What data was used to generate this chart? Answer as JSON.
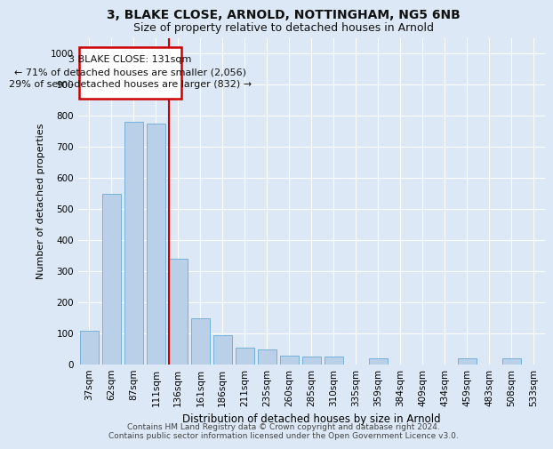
{
  "title1": "3, BLAKE CLOSE, ARNOLD, NOTTINGHAM, NG5 6NB",
  "title2": "Size of property relative to detached houses in Arnold",
  "xlabel": "Distribution of detached houses by size in Arnold",
  "ylabel": "Number of detached properties",
  "categories": [
    "37sqm",
    "62sqm",
    "87sqm",
    "111sqm",
    "136sqm",
    "161sqm",
    "186sqm",
    "211sqm",
    "235sqm",
    "260sqm",
    "285sqm",
    "310sqm",
    "335sqm",
    "359sqm",
    "384sqm",
    "409sqm",
    "434sqm",
    "459sqm",
    "483sqm",
    "508sqm",
    "533sqm"
  ],
  "values": [
    110,
    550,
    780,
    775,
    340,
    150,
    95,
    55,
    50,
    30,
    25,
    25,
    0,
    20,
    0,
    0,
    0,
    20,
    0,
    20,
    0
  ],
  "bar_color": "#bad0e8",
  "bar_edge_color": "#6aaad4",
  "bar_width": 0.85,
  "ylim": [
    0,
    1050
  ],
  "yticks": [
    0,
    100,
    200,
    300,
    400,
    500,
    600,
    700,
    800,
    900,
    1000
  ],
  "vline_color": "#cc0000",
  "vline_at_bar": 4,
  "annotation_line1": "3 BLAKE CLOSE: 131sqm",
  "annotation_line2": "← 71% of detached houses are smaller (2,056)",
  "annotation_line3": "29% of semi-detached houses are larger (832) →",
  "footer1": "Contains HM Land Registry data © Crown copyright and database right 2024.",
  "footer2": "Contains public sector information licensed under the Open Government Licence v3.0.",
  "background_color": "#dce8f5",
  "plot_background_color": "#dce8f5",
  "grid_color": "#ffffff",
  "title1_fontsize": 10,
  "title2_fontsize": 9,
  "tick_fontsize": 7.5,
  "xlabel_fontsize": 8.5,
  "ylabel_fontsize": 8,
  "footer_fontsize": 6.5,
  "annot_fontsize": 8
}
